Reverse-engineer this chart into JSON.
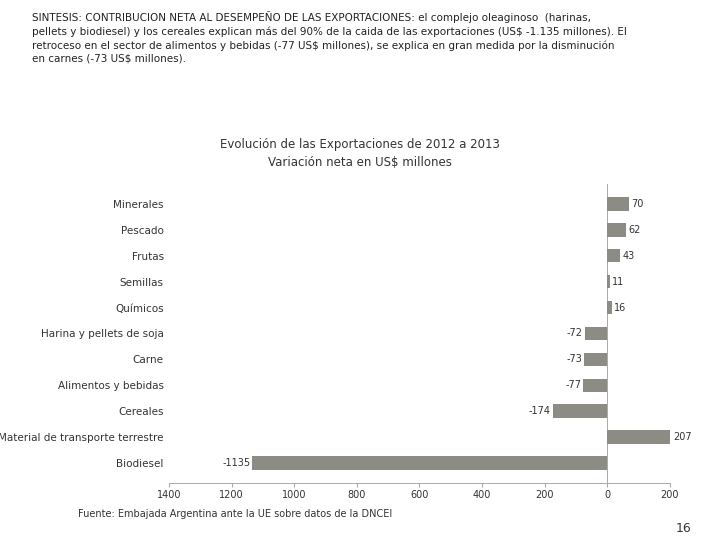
{
  "title_line1": "Evolución de las Exportaciones de 2012 a 2013",
  "title_line2": "Variación neta en US$ millones",
  "categories": [
    "Minerales",
    "Pescado",
    "Frutas",
    "Semillas",
    "Químicos",
    "Harina y pellets de soja",
    "Carne",
    "Alimentos y bebidas",
    "Cereales",
    "Material de transporte terrestre",
    "Biodiesel"
  ],
  "values": [
    70,
    62,
    43,
    11,
    16,
    -72,
    -73,
    -77,
    -174,
    207,
    -1135
  ],
  "bar_color": "#8c8c84",
  "background_color": "#ffffff",
  "xlim": [
    -1400,
    200
  ],
  "xticks": [
    -1400,
    -1200,
    -1000,
    -800,
    -600,
    -400,
    -200,
    0,
    200
  ],
  "xtick_labels": [
    "1400",
    "1200",
    "1000",
    "800",
    "600",
    "400",
    "200",
    "0",
    "200"
  ],
  "header_text": "SINTESIS: CONTRIBUCION NETA AL DESEMPEÑO DE LAS EXPORTACIONES: el complejo oleaginoso  (harinas,\npellets y biodiesel) y los cereales explican más del 90% de la caida de las exportaciones (US$ -1.135 millones). El\nretroceso en el sector de alimentos y bebidas (-77 US$ millones), se explica en gran medida por la disminución\nen carnes (-73 US$ millones).",
  "footer_text": "Fuente: Embajada Argentina ante la UE sobre datos de la DNCEI",
  "page_number": "16",
  "bar_label_fontsize": 7,
  "ytick_fontsize": 7.5,
  "xtick_fontsize": 7,
  "title_fontsize": 8.5,
  "header_fontsize": 7.5,
  "footer_fontsize": 7
}
